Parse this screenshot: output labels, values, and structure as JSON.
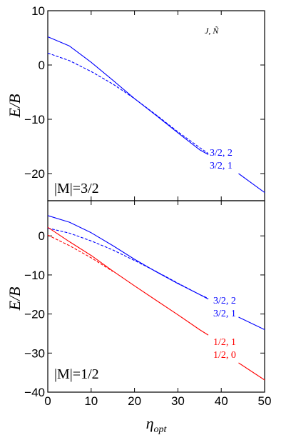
{
  "chart_data": [
    {
      "type": "line",
      "panel_label": "|M|=3/2",
      "legend_title": "J, Ñ",
      "ylabel": "E/B",
      "xlabel": "",
      "xlim": [
        0,
        50
      ],
      "ylim": [
        -25,
        10
      ],
      "yticks": [
        10,
        0,
        -10,
        -20
      ],
      "xticks": [],
      "series": [
        {
          "name": "3/2, 2",
          "color": "#0000ff",
          "dash": "solid",
          "x": [
            0,
            5,
            10,
            15,
            20,
            25,
            30,
            35,
            37
          ],
          "y": [
            5.2,
            3.5,
            0.5,
            -2.8,
            -6.2,
            -9.3,
            -12.5,
            -15.6,
            -16.5
          ]
        },
        {
          "name": "3/2, 1",
          "color": "#0000ff",
          "dash": "dashed",
          "x": [
            0,
            5,
            10,
            15,
            20,
            25,
            30,
            35,
            37
          ],
          "y": [
            2.2,
            0.8,
            -1.2,
            -3.5,
            -6.2,
            -9.2,
            -12.3,
            -15.2,
            -16.3
          ]
        },
        {
          "name": "",
          "color": "#0000ff",
          "dash": "solid",
          "x": [
            44,
            50
          ],
          "y": [
            -20.0,
            -23.5
          ]
        }
      ]
    },
    {
      "type": "line",
      "panel_label": "|M|=1/2",
      "ylabel": "E/B",
      "xlabel": "η_opt",
      "xlabel_main": "η",
      "xlabel_sub": "opt",
      "xlim": [
        0,
        50
      ],
      "ylim": [
        -40,
        9
      ],
      "yticks": [
        0,
        -10,
        -20,
        -30,
        -40
      ],
      "xticks": [
        0,
        10,
        20,
        30,
        40,
        50
      ],
      "series": [
        {
          "name": "3/2, 2",
          "color": "#0000ff",
          "dash": "solid",
          "x": [
            0,
            5,
            10,
            15,
            20,
            25,
            30,
            35,
            37
          ],
          "y": [
            5.2,
            3.5,
            0.8,
            -2.5,
            -6.0,
            -9.2,
            -12.2,
            -15.0,
            -16.2
          ]
        },
        {
          "name": "3/2, 1",
          "color": "#0000ff",
          "dash": "dashed",
          "x": [
            0,
            5,
            10,
            15,
            20,
            25,
            30,
            35,
            37
          ],
          "y": [
            2.0,
            0.7,
            -1.3,
            -3.6,
            -6.3,
            -9.1,
            -12.1,
            -15.0,
            -16.0
          ]
        },
        {
          "name": "",
          "color": "#0000ff",
          "dash": "solid",
          "x": [
            44,
            50
          ],
          "y": [
            -20.8,
            -24.0
          ]
        },
        {
          "name": "1/2, 1",
          "color": "#ff0000",
          "dash": "solid",
          "x": [
            0,
            5,
            10,
            15,
            20,
            25,
            30,
            35,
            37
          ],
          "y": [
            2.2,
            -1.5,
            -5.0,
            -9.0,
            -12.8,
            -16.5,
            -20.2,
            -24.0,
            -25.4
          ]
        },
        {
          "name": "1/2, 0",
          "color": "#ff0000",
          "dash": "dashed",
          "x": [
            0,
            5,
            10,
            15
          ],
          "y": [
            0.2,
            -2.5,
            -5.6,
            -9.1
          ]
        },
        {
          "name": "",
          "color": "#ff0000",
          "dash": "solid",
          "x": [
            44,
            50
          ],
          "y": [
            -32.5,
            -36.9
          ]
        }
      ]
    }
  ]
}
